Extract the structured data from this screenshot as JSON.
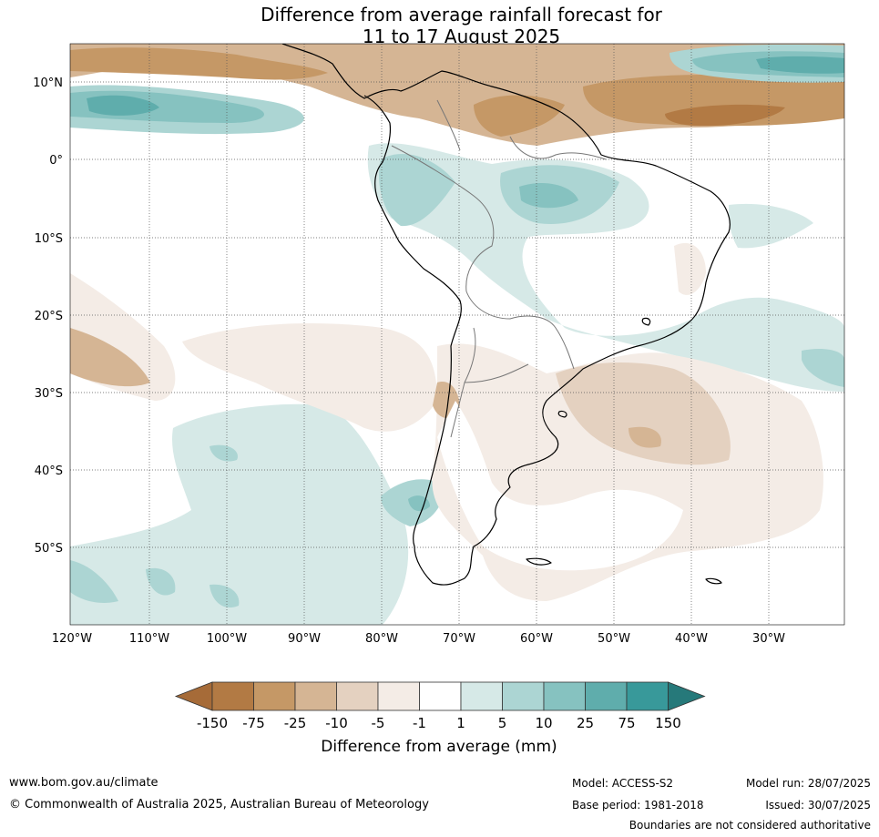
{
  "title_line1": "Difference from average rainfall forecast for",
  "title_line2": "11 to 17 August 2025",
  "lat_labels": [
    "10°N",
    "0°",
    "10°S",
    "20°S",
    "30°S",
    "40°S",
    "50°S"
  ],
  "lon_labels": [
    "120°W",
    "110°W",
    "100°W",
    "90°W",
    "80°W",
    "70°W",
    "60°W",
    "50°W",
    "40°W",
    "30°W"
  ],
  "colorbar": {
    "label": "Difference from average (mm)",
    "ticks": [
      "-150",
      "-75",
      "-25",
      "-10",
      "-5",
      "-1",
      "1",
      "5",
      "10",
      "25",
      "75",
      "150"
    ],
    "colors": [
      "#a66b38",
      "#b27a44",
      "#c59866",
      "#d5b594",
      "#e4d1c0",
      "#f4ece6",
      "#ffffff",
      "#d6e9e7",
      "#acd5d3",
      "#86c2c0",
      "#5fadac",
      "#38999a",
      "#26797a"
    ]
  },
  "footer": {
    "website": "www.bom.gov.au/climate",
    "copyright": "© Commonwealth of Australia 2025, Australian Bureau of Meteorology",
    "model": "Model: ACCESS-S2",
    "base_period": "Base period: 1981-2018",
    "model_run": "Model run: 28/07/2025",
    "issued": "Issued: 30/07/2025",
    "disclaimer": "Boundaries are not considered authoritative"
  }
}
